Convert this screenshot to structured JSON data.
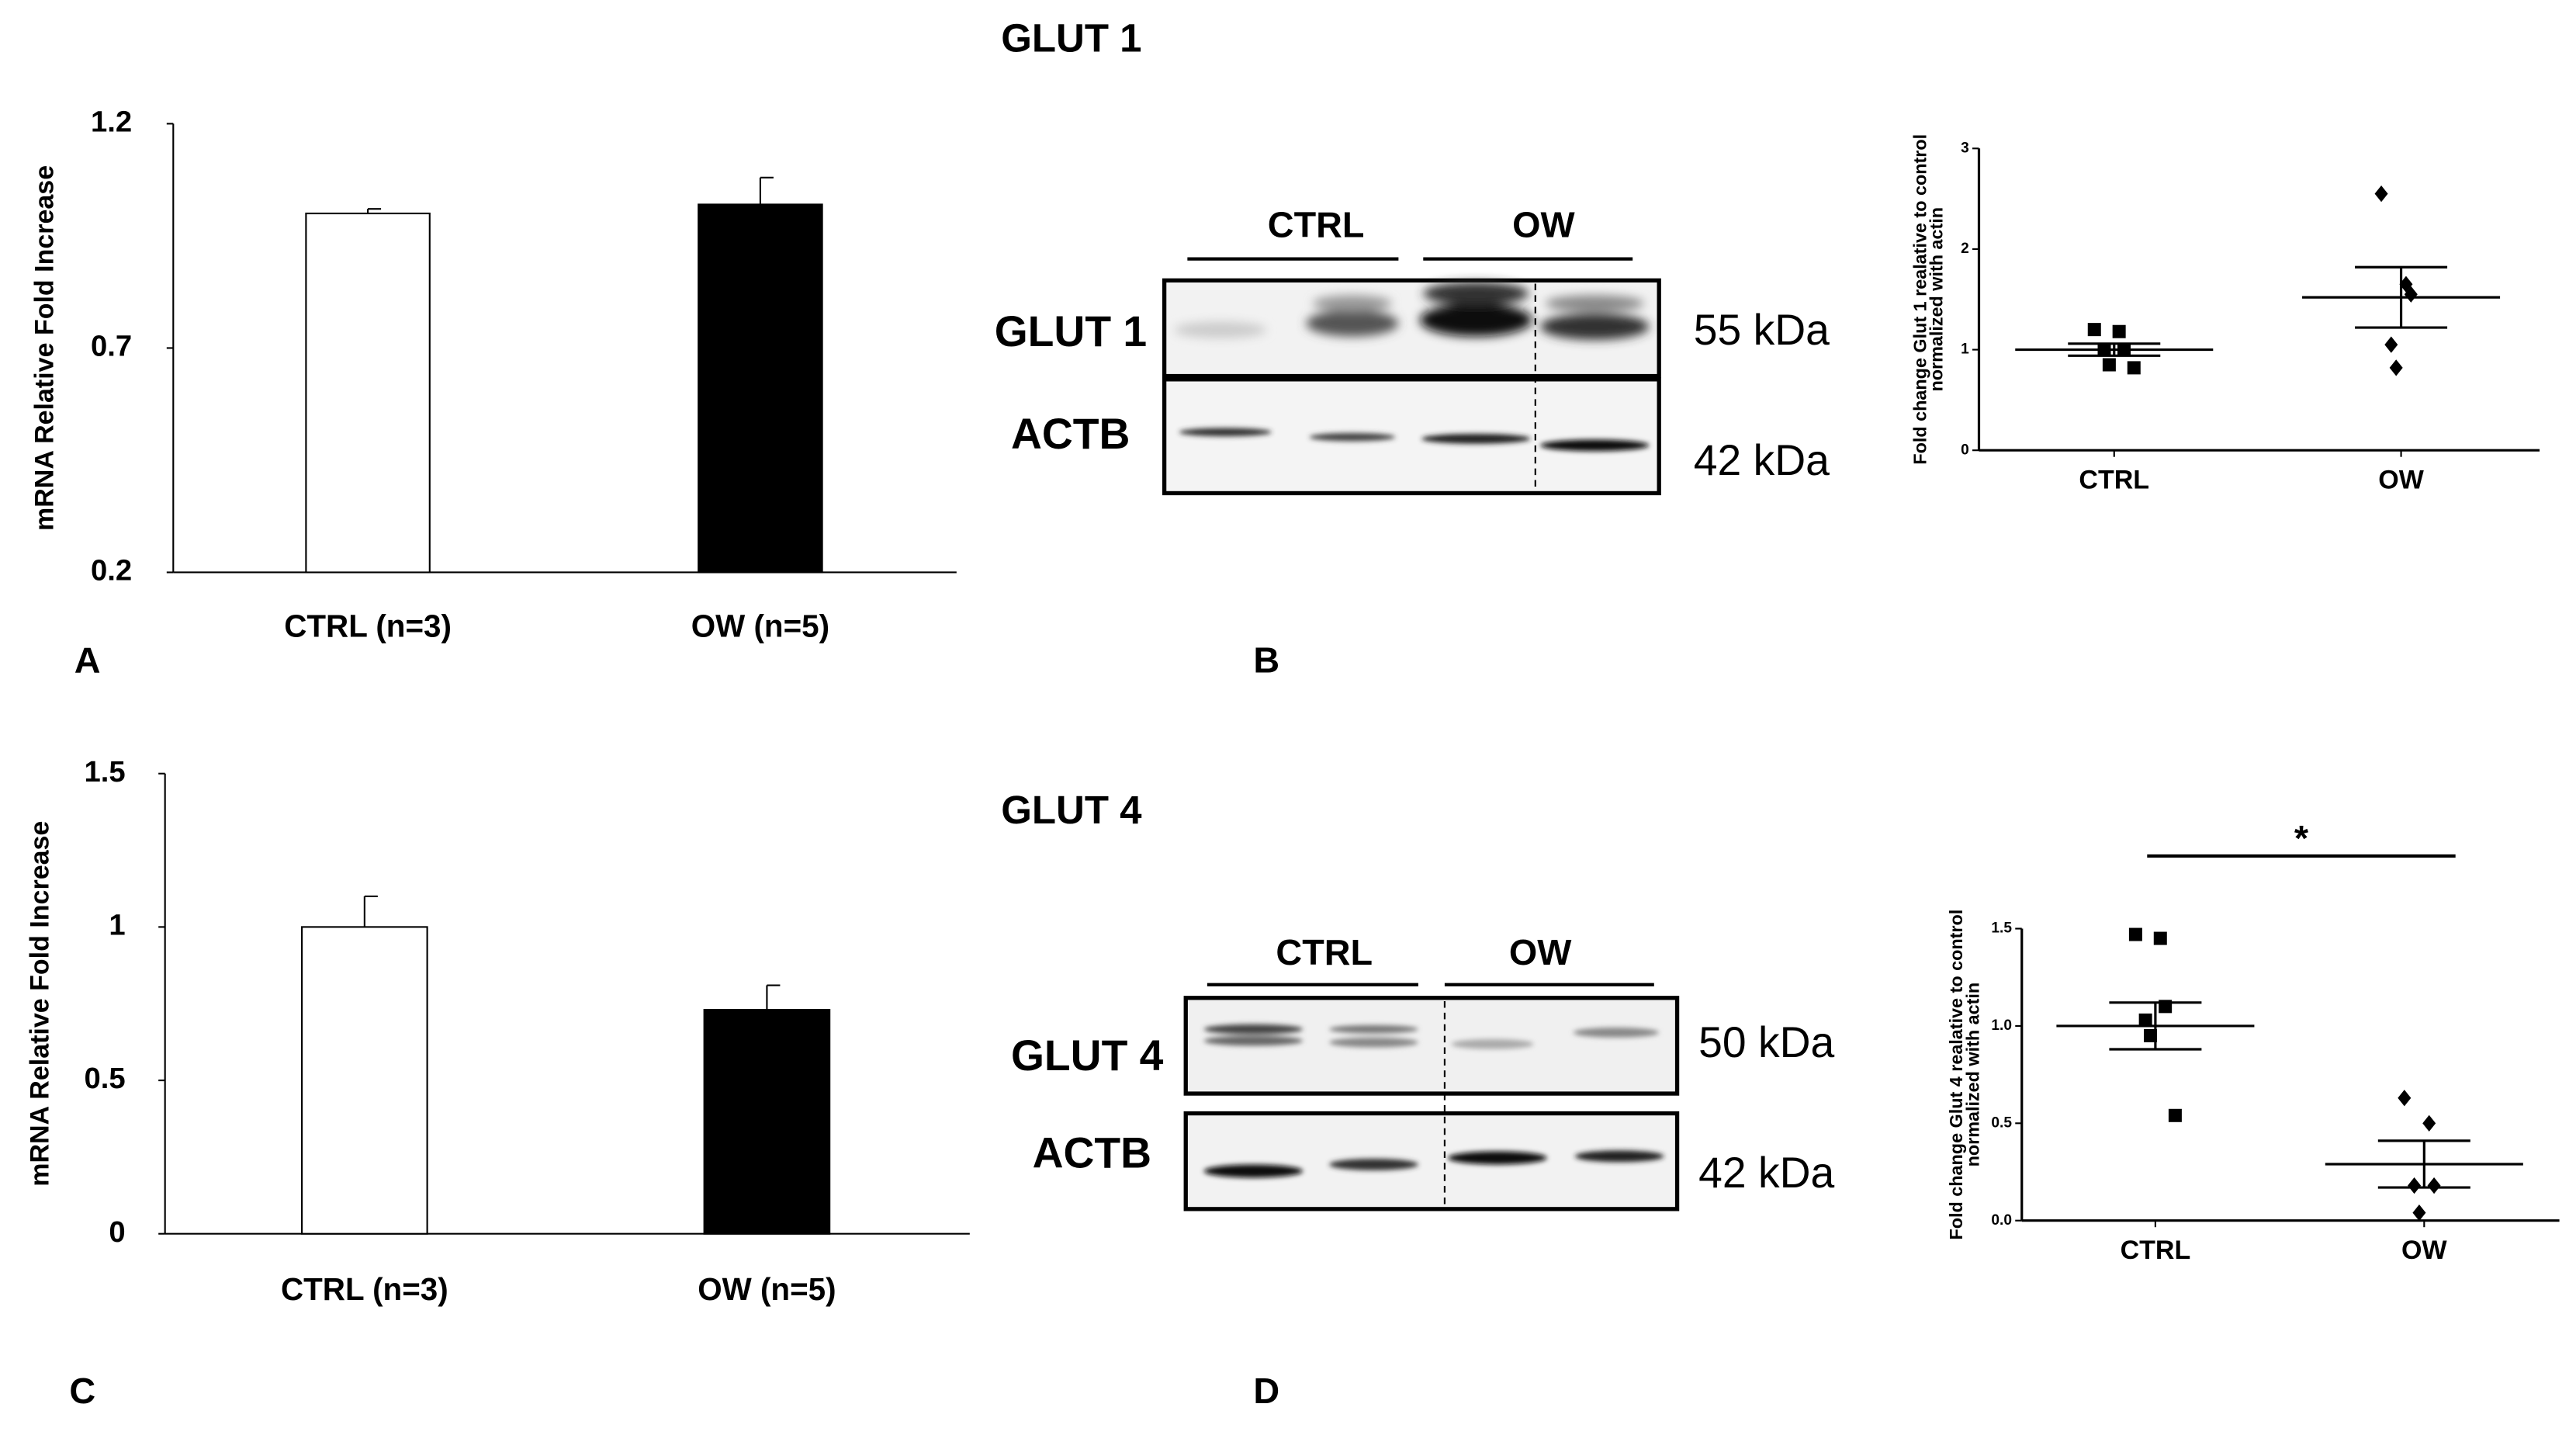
{
  "panels": {
    "labels": [
      "A",
      "B",
      "C",
      "D"
    ],
    "titles": [
      "GLUT 1",
      "GLUT 4"
    ]
  },
  "blots": [
    {
      "groups": [
        "CTRL",
        "OW"
      ],
      "rows": [
        "GLUT 1",
        "ACTB"
      ],
      "sizes": [
        "55 kDa",
        "42 kDa"
      ]
    },
    {
      "groups": [
        "CTRL",
        "OW"
      ],
      "rows": [
        "GLUT 4",
        "ACTB"
      ],
      "sizes": [
        "50 kDa",
        "42 kDa"
      ]
    }
  ],
  "chart_data": [
    {
      "type": "bar",
      "ylabel": "mRNA Relative Fold Increase",
      "categories": [
        "CTRL (n=3)",
        "OW (n=5)"
      ],
      "values": [
        1.0,
        1.02
      ],
      "errors": [
        0.01,
        0.06
      ],
      "colors": [
        "#ffffff",
        "#000000"
      ],
      "ylim": [
        0.2,
        1.2
      ],
      "yticks": [
        0.2,
        0.7,
        1.2
      ]
    },
    {
      "type": "bar",
      "ylabel": "mRNA Relative Fold Increase",
      "categories": [
        "CTRL (n=3)",
        "OW (n=5)"
      ],
      "values": [
        1.0,
        0.73
      ],
      "errors": [
        0.1,
        0.08
      ],
      "colors": [
        "#ffffff",
        "#000000"
      ],
      "ylim": [
        0,
        1.5
      ],
      "yticks": [
        0,
        0.5,
        1,
        1.5
      ]
    },
    {
      "type": "dot",
      "ylabel": [
        "Fold change Glut 1 realative to control",
        "normalized with actin"
      ],
      "categories": [
        "CTRL",
        "OW"
      ],
      "points": [
        [
          1.2,
          1.18,
          1.0,
          1.0,
          0.85,
          0.82
        ],
        [
          2.55,
          1.65,
          1.55,
          1.05,
          0.82
        ]
      ],
      "means": [
        1.0,
        1.52
      ],
      "errors": [
        0.06,
        0.3
      ],
      "markers": [
        "square",
        "diamond"
      ],
      "color": "#000000",
      "ylim": [
        0,
        3
      ],
      "yticks": [
        0,
        1,
        2,
        3
      ]
    },
    {
      "type": "dot",
      "ylabel": [
        "Fold change Glut 4 realative to control",
        "normalized with actin"
      ],
      "categories": [
        "CTRL",
        "OW"
      ],
      "points": [
        [
          1.47,
          1.45,
          1.1,
          1.03,
          0.95,
          0.54
        ],
        [
          0.63,
          0.5,
          0.18,
          0.18,
          0.04
        ]
      ],
      "means": [
        1.0,
        0.29
      ],
      "errors": [
        0.12,
        0.12
      ],
      "markers": [
        "square",
        "diamond"
      ],
      "color": "#000000",
      "ylim": [
        0,
        1.5
      ],
      "yticks": [
        {
          "value": 0,
          "label": "0.0"
        },
        {
          "value": 0.5,
          "label": "0.5"
        },
        {
          "value": 1,
          "label": "1.0"
        },
        {
          "value": 1.5,
          "label": "1.5"
        }
      ],
      "annotation": "*"
    }
  ]
}
